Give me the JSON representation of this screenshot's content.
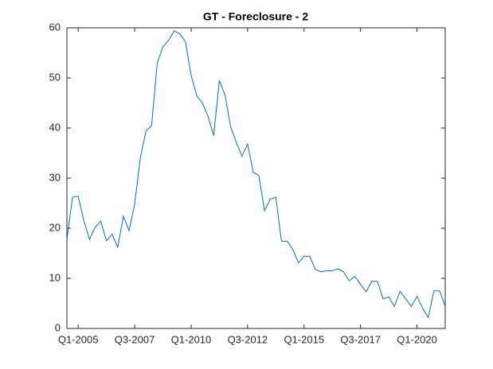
{
  "chart_data": {
    "type": "line",
    "title": "GT - Foreclosure - 2",
    "categories": [
      null,
      null,
      "Q1-2005",
      null,
      null,
      null,
      null,
      null,
      null,
      null,
      null,
      null,
      "Q3-2007",
      null,
      null,
      null,
      null,
      null,
      null,
      null,
      null,
      null,
      "Q1-2010",
      null,
      null,
      null,
      null,
      null,
      null,
      null,
      null,
      null,
      "Q3-2012",
      null,
      null,
      null,
      null,
      null,
      null,
      null,
      null,
      null,
      "Q1-2015",
      null,
      null,
      null,
      null,
      null,
      null,
      null,
      null,
      null,
      "Q3-2017",
      null,
      null,
      null,
      null,
      null,
      null,
      null,
      null,
      null,
      "Q1-2020",
      null,
      null,
      null,
      null,
      null
    ],
    "series": [
      {
        "color": "#0072bd",
        "values": [
          17.8,
          26.2,
          26.4,
          21.5,
          17.8,
          20.2,
          21.4,
          17.5,
          18.8,
          16.2,
          22.4,
          19.5,
          24.8,
          34,
          39.4,
          40.5,
          53,
          56.2,
          57.5,
          59.4,
          58.8,
          57.2,
          50.5,
          46.4,
          45,
          42.3,
          38.5,
          49.5,
          46.6,
          40.2,
          37.2,
          34.4,
          36.8,
          31.2,
          30.5,
          23.5,
          25.8,
          26.2,
          17.4,
          17.4,
          15.8,
          13.1,
          14.4,
          14.4,
          11.8,
          11.3,
          11.5,
          11.5,
          11.9,
          11.3,
          9.5,
          10.4,
          8.8,
          7.3,
          9.4,
          9.4,
          5.9,
          6.3,
          4.4,
          7.4,
          5.9,
          4.4,
          6.4,
          4.0,
          2.2,
          7.5,
          7.5,
          4.4
        ]
      }
    ],
    "ylim": [
      0,
      60
    ],
    "yticks": [
      0,
      10,
      20,
      30,
      40,
      50,
      60
    ],
    "grid": false
  }
}
